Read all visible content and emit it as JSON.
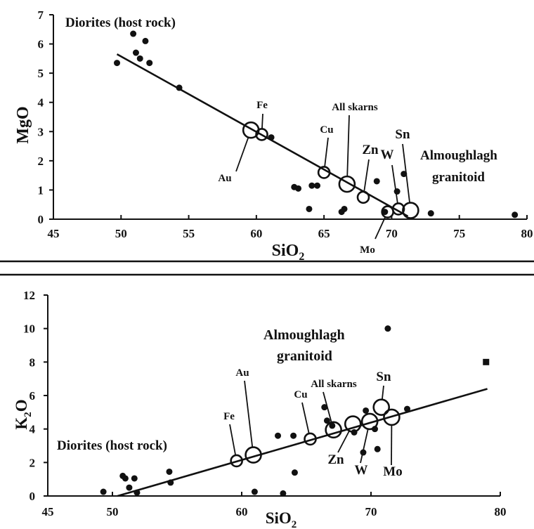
{
  "chart_data": [
    {
      "type": "scatter",
      "xlabel": "SiO",
      "xlabel_sub": "2",
      "ylabel": "MgO",
      "xlim": [
        45,
        80
      ],
      "ylim": [
        0,
        7
      ],
      "x_ticks": [
        "45",
        "50",
        "55",
        "60",
        "65",
        "70",
        "75",
        "80"
      ],
      "y_ticks": [
        "0",
        "1",
        "2",
        "3",
        "4",
        "5",
        "6",
        "7"
      ],
      "notes": {
        "host_rock": "Diorites (host rock)",
        "granitoid_line1": "Almoughlagh",
        "granitoid_line2": "granitoid"
      },
      "series": [
        {
          "kind": "points",
          "x": [
            49.7,
            50.9,
            51.1,
            51.4,
            51.8,
            52.1,
            54.3,
            61.1,
            62.8,
            63.1,
            63.9,
            64.1,
            64.5,
            66.3,
            66.5,
            68.9,
            69.5,
            70.4,
            70.9,
            72.9,
            79.1
          ],
          "y": [
            5.35,
            6.35,
            5.7,
            5.5,
            6.1,
            5.35,
            4.5,
            2.8,
            1.1,
            1.05,
            0.35,
            1.15,
            1.15,
            0.25,
            0.35,
            1.3,
            0.25,
            0.95,
            1.55,
            0.2,
            0.15
          ]
        },
        {
          "kind": "trend",
          "x": [
            49.7,
            71.2
          ],
          "y": [
            5.65,
            0.1
          ]
        },
        {
          "kind": "labeled",
          "points": [
            {
              "label": "Au",
              "x": 59.6,
              "y": 3.05,
              "size": "large"
            },
            {
              "label": "Fe",
              "x": 60.4,
              "y": 2.9,
              "size": "small"
            },
            {
              "label": "Cu",
              "x": 65.0,
              "y": 1.6,
              "size": "small"
            },
            {
              "label": "All skarns",
              "x": 66.7,
              "y": 1.2,
              "size": "large"
            },
            {
              "label": "Zn",
              "x": 67.9,
              "y": 0.75,
              "size": "small"
            },
            {
              "label": "Mo",
              "x": 69.7,
              "y": 0.25,
              "size": "small"
            },
            {
              "label": "W",
              "x": 70.5,
              "y": 0.35,
              "size": "small"
            },
            {
              "label": "Sn",
              "x": 71.4,
              "y": 0.3,
              "size": "large"
            }
          ]
        }
      ]
    },
    {
      "type": "scatter",
      "xlabel": "SiO",
      "xlabel_sub": "2",
      "ylabel": "K",
      "ylabel_sub": "2",
      "ylabel_tail": "O",
      "xlim": [
        45,
        80
      ],
      "ylim": [
        0,
        12
      ],
      "x_ticks": [
        "45",
        "50",
        "60",
        "70",
        "80"
      ],
      "y_ticks": [
        "0",
        "2",
        "4",
        "6",
        "8",
        "10",
        "12"
      ],
      "notes": {
        "host_rock": "Diorites (host rock)",
        "granitoid_line1": "Almoughlagh",
        "granitoid_line2": "granitoid"
      },
      "series": [
        {
          "kind": "points",
          "x": [
            49.3,
            50.8,
            51.0,
            51.3,
            51.7,
            51.9,
            54.4,
            54.5,
            61.0,
            62.8,
            63.2,
            64.0,
            64.1,
            66.4,
            66.6,
            67.0,
            68.7,
            69.4,
            69.6,
            70.3,
            70.5,
            71.3,
            72.8,
            78.9
          ],
          "y": [
            0.25,
            1.2,
            1.05,
            0.5,
            1.05,
            0.2,
            1.45,
            0.8,
            0.25,
            3.6,
            0.15,
            3.6,
            1.4,
            5.3,
            4.5,
            4.2,
            3.8,
            2.6,
            5.1,
            4.0,
            2.8,
            10.0,
            5.2,
            8.0
          ]
        },
        {
          "kind": "trend",
          "x": [
            50.4,
            79.0
          ],
          "y": [
            0.0,
            6.4
          ]
        },
        {
          "kind": "labeled",
          "points": [
            {
              "label": "Fe",
              "x": 59.6,
              "y": 2.1,
              "size": "small"
            },
            {
              "label": "Au",
              "x": 60.9,
              "y": 2.45,
              "size": "large"
            },
            {
              "label": "Cu",
              "x": 65.3,
              "y": 3.4,
              "size": "small"
            },
            {
              "label": "All skarns",
              "x": 67.1,
              "y": 3.95,
              "size": "large"
            },
            {
              "label": "Zn",
              "x": 68.6,
              "y": 4.3,
              "size": "large"
            },
            {
              "label": "W",
              "x": 69.9,
              "y": 4.45,
              "size": "large"
            },
            {
              "label": "Sn",
              "x": 70.8,
              "y": 5.3,
              "size": "large"
            },
            {
              "label": "Mo",
              "x": 71.6,
              "y": 4.7,
              "size": "large"
            }
          ]
        }
      ]
    }
  ]
}
